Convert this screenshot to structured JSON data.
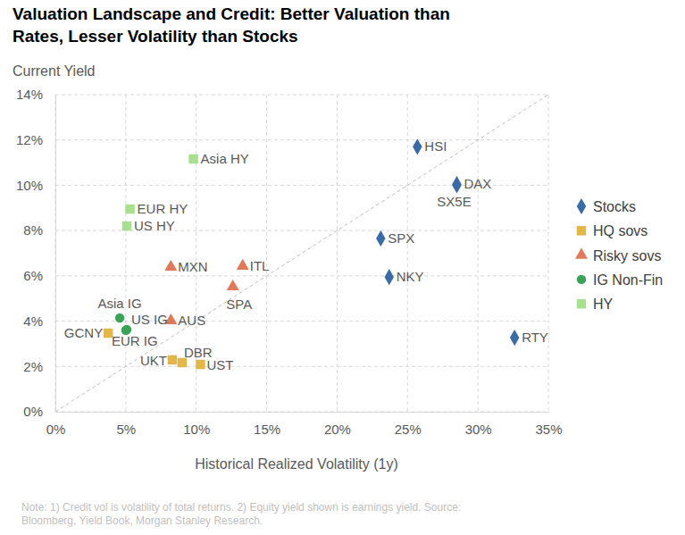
{
  "chart_data": {
    "type": "scatter",
    "title": "Valuation Landscape and Credit: Better Valuation than Rates, Lesser Volatility than Stocks",
    "ylabel": "Current Yield",
    "xlabel": "Historical Realized Volatility (1y)",
    "note": "Note: 1) Credit vol is volatility of total returns. 2) Equity yield shown is earnings yield. Source: Bloomberg, Yield Book, Morgan Stanley Research.",
    "xlim": [
      0,
      35
    ],
    "ylim": [
      0,
      14
    ],
    "xticks": [
      {
        "value": 0,
        "label": "0%"
      },
      {
        "value": 5,
        "label": "5%"
      },
      {
        "value": 10,
        "label": "10%"
      },
      {
        "value": 15,
        "label": "15%"
      },
      {
        "value": 20,
        "label": "20%"
      },
      {
        "value": 25,
        "label": "25%"
      },
      {
        "value": 30,
        "label": "30%"
      },
      {
        "value": 35,
        "label": "35%"
      }
    ],
    "yticks": [
      {
        "value": 0,
        "label": "0%"
      },
      {
        "value": 2,
        "label": "2%"
      },
      {
        "value": 4,
        "label": "4%"
      },
      {
        "value": 6,
        "label": "6%"
      },
      {
        "value": 8,
        "label": "8%"
      },
      {
        "value": 10,
        "label": "10%"
      },
      {
        "value": 12,
        "label": "12%"
      },
      {
        "value": 14,
        "label": "14%"
      }
    ],
    "grid": true,
    "legend": "right",
    "series": [
      {
        "name": "Stocks",
        "color": "#3b6ba5",
        "marker": "diamond",
        "labels": [
          "HSI",
          "DAX",
          "SX5E",
          "SPX",
          "NKY",
          "RTY"
        ],
        "x": [
          25.7,
          28.5,
          28.5,
          23.1,
          23.7,
          32.6
        ],
        "values": [
          11.7,
          10.05,
          10.0,
          7.65,
          5.95,
          3.27
        ]
      },
      {
        "name": "HQ sovs",
        "color": "#e3b64a",
        "marker": "square",
        "labels": [
          "GCNY",
          "UKT",
          "DBR",
          "UST"
        ],
        "x": [
          3.75,
          8.3,
          9.0,
          10.3
        ],
        "values": [
          3.47,
          2.29,
          2.17,
          2.09
        ]
      },
      {
        "name": "Risky sovs",
        "color": "#e0785a",
        "marker": "triangle",
        "labels": [
          "MXN",
          "ITL",
          "SPA",
          "AUS"
        ],
        "x": [
          8.2,
          13.3,
          12.6,
          8.2
        ],
        "values": [
          6.39,
          6.43,
          5.52,
          4.02
        ]
      },
      {
        "name": "IG Non-Fin",
        "color": "#3aa357",
        "marker": "circle",
        "labels": [
          "Asia IG",
          "US IG",
          "EUR IG"
        ],
        "x": [
          4.57,
          5.07,
          5.0
        ],
        "values": [
          4.14,
          3.63,
          3.6
        ]
      },
      {
        "name": "HY",
        "color": "#a9e08f",
        "marker": "square",
        "labels": [
          "Asia HY",
          "EUR HY",
          "US HY"
        ],
        "x": [
          9.8,
          5.3,
          5.07
        ],
        "values": [
          11.16,
          8.95,
          8.2
        ]
      }
    ]
  }
}
